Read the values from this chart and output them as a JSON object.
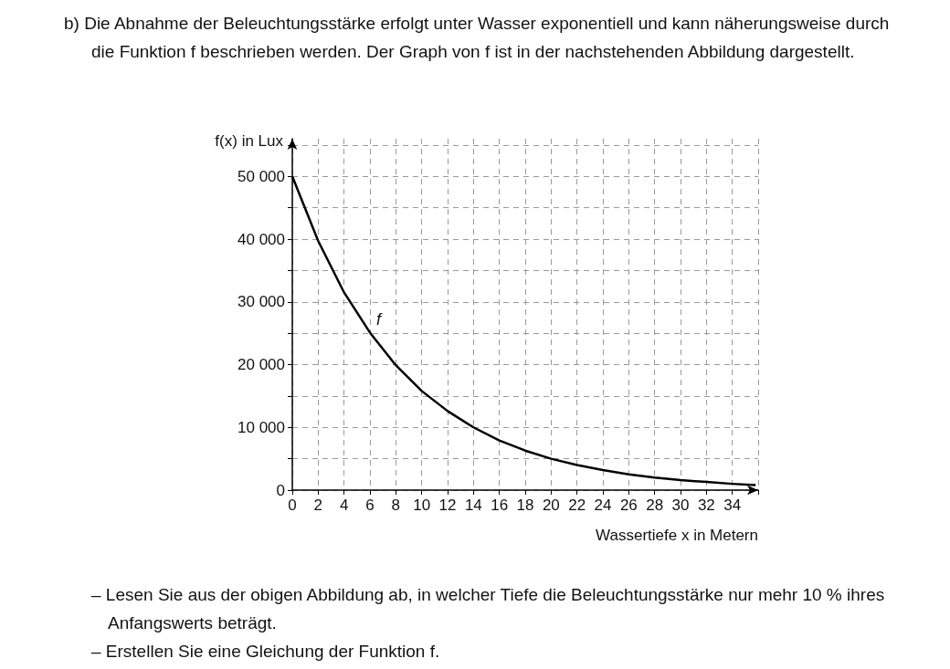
{
  "chart_data": {
    "type": "line",
    "title": "b) Die Abnahme der Beleuchtungsstärke erfolgt unter Wasser exponentiell und kann näherungsweise durch die Funktion f beschrieben werden. Der Graph von f ist in der nachstehenden Abbildung dargestellt.",
    "xlabel": "Wassertiefe x in Metern",
    "ylabel": "f(x) in Lux",
    "x": [
      0,
      2,
      4,
      6,
      8,
      10,
      12,
      14,
      16,
      18,
      20,
      22,
      24,
      26,
      28,
      30,
      32,
      34,
      35.8
    ],
    "series": [
      {
        "color": "#000000",
        "values": [
          50000,
          39700,
          31500,
          25100,
          19900,
          15800,
          12600,
          10000,
          7900,
          6300,
          5000,
          4000,
          3200,
          2500,
          2000,
          1600,
          1300,
          1000,
          800
        ]
      }
    ],
    "xlim": [
      0,
      36
    ],
    "xticks": [
      0,
      2,
      4,
      6,
      8,
      10,
      12,
      14,
      16,
      18,
      20,
      22,
      24,
      26,
      28,
      30,
      32,
      34,
      {
        "value": 36,
        "label": null
      }
    ],
    "ylim": [
      0,
      56000
    ],
    "yticks": [
      0,
      {
        "value": 5000,
        "label": null
      },
      {
        "value": 10000,
        "label": "10 000"
      },
      {
        "value": 15000,
        "label": null
      },
      {
        "value": 20000,
        "label": "20 000"
      },
      {
        "value": 25000,
        "label": null
      },
      {
        "value": 30000,
        "label": "30 000"
      },
      {
        "value": 35000,
        "label": null
      },
      {
        "value": 40000,
        "label": "40 000"
      },
      {
        "value": 45000,
        "label": null
      },
      {
        "value": 50000,
        "label": "50 000"
      },
      {
        "value": 55000,
        "label": null
      }
    ],
    "grid": true,
    "marker": "none",
    "annotations": [
      {
        "text": "f",
        "x": 6,
        "y": 25100
      },
      "– Lesen Sie aus der obigen Abbildung ab, in welcher Tiefe die Beleuchtungsstärke nur mehr 10 % ihres Anfangswerts beträgt.",
      "– Erstellen Sie eine Gleichung der Funktion f."
    ]
  }
}
